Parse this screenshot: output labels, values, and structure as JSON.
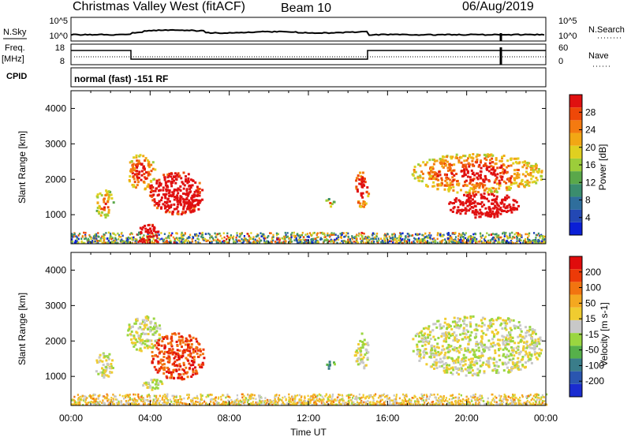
{
  "header": {
    "station": "Christmas Valley West (fitACF)",
    "beam": "Beam 10",
    "date": "06/Aug/2019"
  },
  "panels": {
    "nsky": {
      "left_label": "N.Sky",
      "left_ticks": [
        "10^5",
        "10^0"
      ],
      "right_ticks": [
        "10^5",
        "10^0"
      ],
      "right_label": "N.Search"
    },
    "freq": {
      "left_label_1": "Freq.",
      "left_label_2": "[MHz]",
      "left_ticks": [
        "18",
        "8"
      ],
      "right_ticks": [
        "60",
        "0"
      ],
      "right_label": "Nave"
    },
    "cpid": {
      "label": "CPID",
      "text": "normal (fast) -151 RF"
    }
  },
  "chart_data": [
    {
      "type": "heatmap",
      "name": "power",
      "ylabel": "Slant Range [km]",
      "xlim": [
        0,
        24
      ],
      "ylim": [
        180,
        4500
      ],
      "y_ticks": [
        1000,
        2000,
        3000,
        4000
      ],
      "colorbar": {
        "label": "Power [dB]",
        "range": [
          0,
          32
        ],
        "ticks": [
          "4",
          "8",
          "12",
          "16",
          "20",
          "24",
          "28"
        ],
        "colors": [
          "#0a1fd6",
          "#2348b4",
          "#2f6e9c",
          "#3b8d6e",
          "#5aa84a",
          "#9ccd3a",
          "#e0d020",
          "#f2a714",
          "#f47a10",
          "#ee4808",
          "#e01010"
        ]
      },
      "blobs": [
        {
          "t0": 1.2,
          "t1": 2.1,
          "r0": 900,
          "r1": 1700,
          "level": 10
        },
        {
          "t0": 2.8,
          "t1": 4.2,
          "r0": 1700,
          "r1": 2700,
          "level": 12
        },
        {
          "t0": 3.9,
          "t1": 6.6,
          "r0": 1000,
          "r1": 2200,
          "level": 18
        },
        {
          "t0": 5.2,
          "t1": 6.6,
          "r0": 1050,
          "r1": 1650,
          "level": 26
        },
        {
          "t0": 3.3,
          "t1": 4.5,
          "r0": 350,
          "r1": 700,
          "level": 20
        },
        {
          "t0": 3.4,
          "t1": 4.4,
          "r0": 200,
          "r1": 330,
          "level": 30
        },
        {
          "t0": 12.8,
          "t1": 13.3,
          "r0": 1200,
          "r1": 1450,
          "level": 8
        },
        {
          "t0": 14.3,
          "t1": 15.0,
          "r0": 1200,
          "r1": 2200,
          "level": 14
        },
        {
          "t0": 17.2,
          "t1": 23.8,
          "r0": 1600,
          "r1": 2700,
          "level": 12
        },
        {
          "t0": 19.0,
          "t1": 22.6,
          "r0": 900,
          "r1": 1600,
          "level": 22
        },
        {
          "t0": 20.2,
          "t1": 21.8,
          "r0": 950,
          "r1": 1200,
          "level": 28
        }
      ],
      "ground_scatter": {
        "r0": 180,
        "r1": 480,
        "level": 9
      }
    },
    {
      "type": "heatmap",
      "name": "velocity",
      "ylabel": "Slant Range [km]",
      "xlabel": "Time UT",
      "xlim": [
        0,
        24
      ],
      "ylim": [
        180,
        4500
      ],
      "x_ticks": [
        "00:00",
        "04:00",
        "08:00",
        "12:00",
        "16:00",
        "20:00",
        "00:00"
      ],
      "y_ticks": [
        1000,
        2000,
        3000,
        4000
      ],
      "colorbar": {
        "label": "Velocity [m s-1]",
        "ticks": [
          "200",
          "100",
          "50",
          "15",
          "-15",
          "-50",
          "-100",
          "-200"
        ],
        "colors": [
          "#1a2cd0",
          "#2a56b0",
          "#3a7d8a",
          "#56b04a",
          "#9ad640",
          "#c8c8c8",
          "#f0cc30",
          "#f4a820",
          "#f27410",
          "#ec3a08",
          "#e00c0c"
        ]
      },
      "blobs": [
        {
          "t0": 1.2,
          "t1": 2.1,
          "r0": 900,
          "r1": 1700,
          "level": 5
        },
        {
          "t0": 2.8,
          "t1": 4.5,
          "r0": 1700,
          "r1": 2700,
          "level": 5
        },
        {
          "t0": 4.0,
          "t1": 6.7,
          "r0": 900,
          "r1": 2200,
          "level": 9
        },
        {
          "t0": 3.5,
          "t1": 4.6,
          "r0": 600,
          "r1": 900,
          "level": 5
        },
        {
          "t0": 12.8,
          "t1": 13.3,
          "r0": 1200,
          "r1": 1450,
          "level": 3
        },
        {
          "t0": 14.3,
          "t1": 15.0,
          "r0": 1200,
          "r1": 2200,
          "level": 5
        },
        {
          "t0": 17.2,
          "t1": 23.8,
          "r0": 1000,
          "r1": 2700,
          "level": 5
        }
      ],
      "ground_scatter": {
        "r0": 180,
        "r1": 480,
        "level": 6
      }
    }
  ]
}
